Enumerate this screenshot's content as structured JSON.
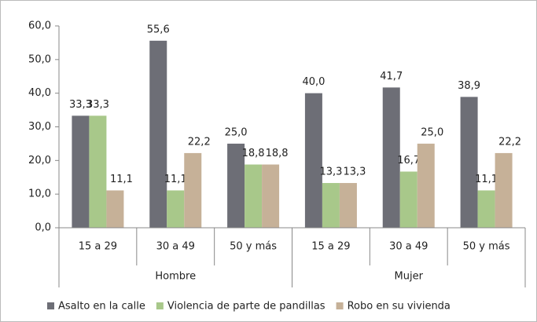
{
  "chart_data": {
    "type": "bar",
    "categories": [
      "15 a 29",
      "30 a 49",
      "50 y más",
      "15 a 29",
      "30 a 49",
      "50 y más"
    ],
    "groups": [
      "Hombre",
      "Mujer"
    ],
    "series": [
      {
        "name": "Asalto en la calle",
        "color": "#6d6e76",
        "values": [
          33.3,
          55.6,
          25.0,
          40.0,
          41.7,
          38.9
        ],
        "value_labels": [
          "33,3",
          "55,6",
          "25,0",
          "40,0",
          "41,7",
          "38,9"
        ]
      },
      {
        "name": "Violencia de parte de pandillas",
        "color": "#a8c88a",
        "values": [
          33.3,
          11.1,
          18.8,
          13.3,
          16.7,
          11.1
        ],
        "value_labels": [
          "33,3",
          "11,1",
          "18,8",
          "13,3",
          "16,7",
          "11,1"
        ]
      },
      {
        "name": "Robo en su vivienda",
        "color": "#c6b198",
        "values": [
          11.1,
          22.2,
          18.8,
          13.3,
          25.0,
          22.2
        ],
        "value_labels": [
          "11,1",
          "22,2",
          "18,8",
          "13,3",
          "25,0",
          "22,2"
        ]
      }
    ],
    "ylim": [
      0,
      60
    ],
    "yticks": [
      {
        "value": 0,
        "label": "0,0"
      },
      {
        "value": 10,
        "label": "10,0"
      },
      {
        "value": 20,
        "label": "20,0"
      },
      {
        "value": 30,
        "label": "30,0"
      },
      {
        "value": 40,
        "label": "40,0"
      },
      {
        "value": 50,
        "label": "50,0"
      },
      {
        "value": 60,
        "label": "60,0"
      }
    ],
    "legend": "bottom"
  }
}
